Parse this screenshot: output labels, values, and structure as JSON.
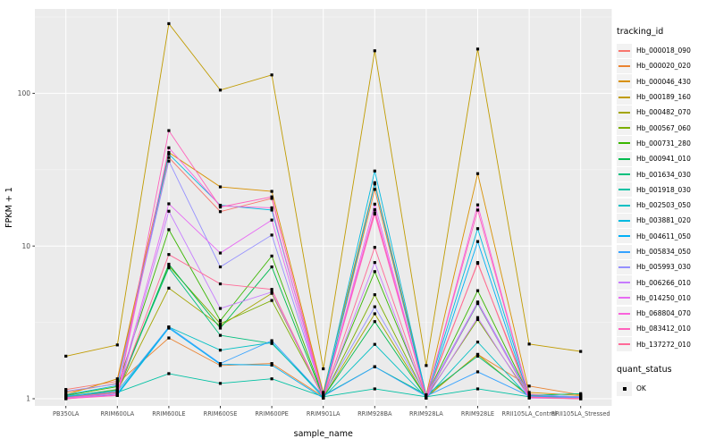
{
  "panel": {
    "bg": "#EBEBEB",
    "grid_major": "#FFFFFF",
    "grid_minor": "#F5F5F5",
    "tick_color": "#333333",
    "tick_label_color": "#4D4D4D"
  },
  "legend": {
    "tracking_title": "tracking_id",
    "quant_title": "quant_status",
    "key_bg": "#F2F2F2",
    "quant_items": [
      {
        "label": "OK",
        "marker_color": "#000000",
        "marker_shape": "square"
      }
    ]
  },
  "chart_data": {
    "type": "line",
    "title": "",
    "xlabel": "sample_name",
    "ylabel": "FPKM + 1",
    "y_scale": "log10",
    "ylim": [
      0.9,
      340
    ],
    "y_tick_values": [
      1,
      10,
      100
    ],
    "y_tick_labels": [
      "1",
      "10",
      "100"
    ],
    "y_minor_values": [
      3.162,
      31.62,
      316.2
    ],
    "grid": true,
    "legend_position": "right",
    "point_style": {
      "shape": "square",
      "color": "#000000",
      "size": 3.2
    },
    "categories": [
      "PB350LA",
      "RRIM600LA",
      "RRIM600LE",
      "RRIM600SE",
      "RRIM600PE",
      "RRIM901LA",
      "RRIM928BA",
      "RRIM928LA",
      "RRIM928LE",
      "RRII105LA_Control",
      "RRII105LA_Stressed"
    ],
    "series": [
      {
        "name": "Hb_000018_090",
        "color": "#F8766D",
        "values": [
          1.15,
          1.3,
          38,
          16.8,
          20.5,
          1.07,
          16.5,
          1.05,
          7.7,
          1.07,
          1.02
        ]
      },
      {
        "name": "Hb_000020_020",
        "color": "#EA8331",
        "values": [
          1.1,
          1.26,
          2.5,
          1.65,
          1.7,
          1.03,
          23.5,
          1.03,
          1.95,
          1.21,
          1.06
        ]
      },
      {
        "name": "Hb_000046_430",
        "color": "#D89000",
        "values": [
          1.06,
          1.35,
          41,
          24.4,
          22.8,
          1.1,
          26.0,
          1.06,
          29.8,
          1.1,
          1.05
        ]
      },
      {
        "name": "Hb_000189_160",
        "color": "#C09B00",
        "values": [
          1.9,
          2.25,
          286,
          105,
          132,
          1.57,
          190,
          1.65,
          195,
          2.28,
          2.04
        ]
      },
      {
        "name": "Hb_000482_070",
        "color": "#A3A500",
        "values": [
          1.02,
          1.12,
          5.3,
          3.0,
          4.9,
          1.02,
          3.6,
          1.02,
          1.95,
          1.03,
          1.01
        ]
      },
      {
        "name": "Hb_000567_060",
        "color": "#7CAE00",
        "values": [
          1.03,
          1.15,
          7.4,
          3.1,
          4.4,
          1.03,
          4.8,
          1.03,
          3.3,
          1.04,
          1.02
        ]
      },
      {
        "name": "Hb_000731_280",
        "color": "#39B600",
        "values": [
          1.05,
          1.2,
          12.8,
          3.25,
          8.6,
          1.04,
          6.8,
          1.04,
          5.1,
          1.05,
          1.03
        ]
      },
      {
        "name": "Hb_000941_010",
        "color": "#00BB4E",
        "values": [
          1.02,
          1.1,
          7.6,
          2.9,
          7.3,
          1.02,
          3.2,
          1.02,
          4.2,
          1.03,
          1.01
        ]
      },
      {
        "name": "Hb_001634_030",
        "color": "#00BF7D",
        "values": [
          1.04,
          1.14,
          7.2,
          2.6,
          2.3,
          1.05,
          1.62,
          1.06,
          1.9,
          1.05,
          1.08
        ]
      },
      {
        "name": "Hb_001918_030",
        "color": "#00C1A3",
        "values": [
          1.03,
          1.1,
          1.46,
          1.26,
          1.35,
          1.03,
          1.16,
          1.03,
          1.16,
          1.03,
          1.02
        ]
      },
      {
        "name": "Hb_002503_050",
        "color": "#00BFC4",
        "values": [
          1.02,
          1.08,
          2.95,
          2.08,
          2.33,
          1.02,
          2.27,
          1.02,
          2.35,
          1.02,
          1.01
        ]
      },
      {
        "name": "Hb_003881_020",
        "color": "#00BAE0",
        "values": [
          1.06,
          1.22,
          40,
          18.5,
          17.2,
          1.06,
          31.0,
          1.05,
          13.0,
          1.06,
          1.03
        ]
      },
      {
        "name": "Hb_004611_050",
        "color": "#00B0F6",
        "values": [
          1.02,
          1.06,
          2.9,
          1.68,
          1.66,
          1.01,
          25.5,
          1.01,
          10.7,
          1.02,
          1.01
        ]
      },
      {
        "name": "Hb_005834_050",
        "color": "#35A2FF",
        "values": [
          1.04,
          1.12,
          2.95,
          1.7,
          2.4,
          1.04,
          1.62,
          1.04,
          1.5,
          1.04,
          1.02
        ]
      },
      {
        "name": "Hb_005993_030",
        "color": "#9590FF",
        "values": [
          1.12,
          1.25,
          36,
          7.3,
          11.8,
          1.05,
          4.0,
          1.05,
          4.3,
          1.06,
          1.03
        ]
      },
      {
        "name": "Hb_006266_010",
        "color": "#C77CFF",
        "values": [
          1.01,
          1.05,
          16.9,
          3.9,
          5.0,
          1.01,
          7.8,
          1.01,
          3.4,
          1.01,
          1.0
        ]
      },
      {
        "name": "Hb_014250_010",
        "color": "#E76BF3",
        "values": [
          1.01,
          1.08,
          18.9,
          9.0,
          14.8,
          1.02,
          18.8,
          1.02,
          4.25,
          1.02,
          1.01
        ]
      },
      {
        "name": "Hb_068804_070",
        "color": "#FA62DB",
        "values": [
          1.0,
          1.06,
          44,
          18.3,
          17.8,
          1.02,
          17.3,
          1.02,
          18.6,
          1.02,
          1.0
        ]
      },
      {
        "name": "Hb_083412_010",
        "color": "#FF62BC",
        "values": [
          1.0,
          1.05,
          57,
          18.0,
          21.0,
          1.03,
          16.2,
          1.03,
          17.2,
          1.03,
          1.0
        ]
      },
      {
        "name": "Hb_137272_010",
        "color": "#FF6A98",
        "values": [
          1.02,
          1.1,
          8.8,
          5.65,
          5.2,
          1.02,
          9.8,
          1.02,
          7.8,
          1.02,
          1.0
        ]
      }
    ]
  }
}
